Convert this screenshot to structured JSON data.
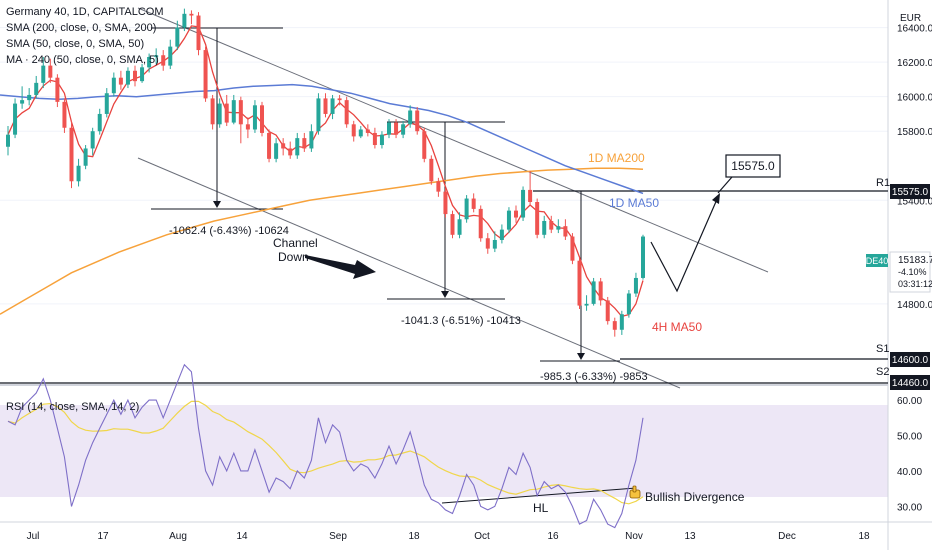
{
  "header": {
    "symbol_line": "Germany 40, 1D, CAPITALCOM",
    "indicators": [
      "SMA (200, close, 0, SMA, 200)",
      "SMA (50, close, 0, SMA, 50)",
      "MA · 240 (50, close, 0, SMA, 5)"
    ]
  },
  "price_axis": {
    "currency": "EUR",
    "ticks": [
      "16400.0",
      "16200.0",
      "16000.0",
      "15800.0",
      "15400.0",
      "14800.0"
    ],
    "price_label_symbol": "DE40",
    "price_label_value": "15183.7",
    "price_label_change": "-4.10%",
    "price_label_timer": "03:31:12",
    "r1_value": "15575.0",
    "s1_value": "14600.0",
    "s2_value": "14460.0"
  },
  "rsi_axis": {
    "ticks": [
      "60.00",
      "50.00",
      "40.00",
      "30.00"
    ]
  },
  "time_axis": {
    "ticks": [
      "Jul",
      "17",
      "Aug",
      "14",
      "Sep",
      "18",
      "Oct",
      "16",
      "Nov",
      "13",
      "Dec",
      "18"
    ]
  },
  "annotations": {
    "target_box": "15575.0",
    "channel_label_1": "Channel",
    "channel_label_2": "Down",
    "ma200_label": "1D MA200",
    "ma50_label": "1D MA50",
    "ma4h_label": "4H MA50",
    "r1": "R1",
    "s1": "S1",
    "s2": "S2",
    "measure1": "-1062.4 (-6.43%) -10624",
    "measure2": "-1041.3 (-6.51%) -10413",
    "measure3": "-985.3 (-6.33%) -9853",
    "hl": "HL",
    "bullish_div": "Bullish Divergence",
    "rsi_title": "RSI (14, close, SMA, 14, 2)"
  },
  "colors": {
    "up": "#26a69a",
    "down": "#ef5350",
    "ma200": "#f7a23b",
    "ma50_daily": "#5b7bd5",
    "ma4h": "#e8433f",
    "rsi": "#7e6fc8",
    "rsi_ma": "#f0d64a",
    "rsi_band": "#ede7f6"
  },
  "chart_data": {
    "type": "candlestick",
    "candles": [
      {
        "o": 15710,
        "c": 15780,
        "h": 15830,
        "l": 15660
      },
      {
        "o": 15780,
        "c": 15960,
        "h": 15990,
        "l": 15760
      },
      {
        "o": 15960,
        "c": 15980,
        "h": 16060,
        "l": 15930
      },
      {
        "o": 15980,
        "c": 16010,
        "h": 16050,
        "l": 15950
      },
      {
        "o": 16010,
        "c": 16080,
        "h": 16120,
        "l": 15990
      },
      {
        "o": 16080,
        "c": 16180,
        "h": 16230,
        "l": 16050
      },
      {
        "o": 16180,
        "c": 16110,
        "h": 16220,
        "l": 16080
      },
      {
        "o": 16110,
        "c": 15970,
        "h": 16130,
        "l": 15940
      },
      {
        "o": 15970,
        "c": 15820,
        "h": 15990,
        "l": 15790
      },
      {
        "o": 15820,
        "c": 15510,
        "h": 15860,
        "l": 15470
      },
      {
        "o": 15510,
        "c": 15600,
        "h": 15640,
        "l": 15480
      },
      {
        "o": 15600,
        "c": 15700,
        "h": 15720,
        "l": 15580
      },
      {
        "o": 15700,
        "c": 15800,
        "h": 15820,
        "l": 15660
      },
      {
        "o": 15800,
        "c": 15900,
        "h": 15930,
        "l": 15780
      },
      {
        "o": 15900,
        "c": 16020,
        "h": 16050,
        "l": 15880
      },
      {
        "o": 16020,
        "c": 16110,
        "h": 16140,
        "l": 16000
      },
      {
        "o": 16110,
        "c": 16070,
        "h": 16150,
        "l": 16040
      },
      {
        "o": 16070,
        "c": 16150,
        "h": 16170,
        "l": 16050
      },
      {
        "o": 16150,
        "c": 16090,
        "h": 16180,
        "l": 16060
      },
      {
        "o": 16090,
        "c": 16170,
        "h": 16190,
        "l": 16080
      },
      {
        "o": 16170,
        "c": 16230,
        "h": 16250,
        "l": 16140
      },
      {
        "o": 16230,
        "c": 16240,
        "h": 16280,
        "l": 16190
      },
      {
        "o": 16240,
        "c": 16180,
        "h": 16270,
        "l": 16150
      },
      {
        "o": 16180,
        "c": 16290,
        "h": 16330,
        "l": 16160
      },
      {
        "o": 16290,
        "c": 16400,
        "h": 16440,
        "l": 16270
      },
      {
        "o": 16400,
        "c": 16480,
        "h": 16510,
        "l": 16380
      },
      {
        "o": 16480,
        "c": 16470,
        "h": 16500,
        "l": 16420
      },
      {
        "o": 16470,
        "c": 16270,
        "h": 16490,
        "l": 16240
      },
      {
        "o": 16270,
        "c": 15990,
        "h": 16290,
        "l": 15970
      },
      {
        "o": 15990,
        "c": 15840,
        "h": 16010,
        "l": 15810
      },
      {
        "o": 15840,
        "c": 15960,
        "h": 15990,
        "l": 15820
      },
      {
        "o": 15960,
        "c": 15850,
        "h": 16010,
        "l": 15830
      },
      {
        "o": 15850,
        "c": 15980,
        "h": 16010,
        "l": 15840
      },
      {
        "o": 15980,
        "c": 15840,
        "h": 16000,
        "l": 15730
      },
      {
        "o": 15840,
        "c": 15810,
        "h": 15880,
        "l": 15760
      },
      {
        "o": 15810,
        "c": 15950,
        "h": 15980,
        "l": 15790
      },
      {
        "o": 15950,
        "c": 15790,
        "h": 15970,
        "l": 15770
      },
      {
        "o": 15790,
        "c": 15640,
        "h": 15810,
        "l": 15620
      },
      {
        "o": 15640,
        "c": 15730,
        "h": 15760,
        "l": 15620
      },
      {
        "o": 15730,
        "c": 15700,
        "h": 15760,
        "l": 15660
      },
      {
        "o": 15700,
        "c": 15660,
        "h": 15740,
        "l": 15640
      },
      {
        "o": 15660,
        "c": 15760,
        "h": 15790,
        "l": 15640
      },
      {
        "o": 15760,
        "c": 15700,
        "h": 15790,
        "l": 15680
      },
      {
        "o": 15700,
        "c": 15800,
        "h": 15840,
        "l": 15680
      },
      {
        "o": 15800,
        "c": 15990,
        "h": 16020,
        "l": 15780
      },
      {
        "o": 15990,
        "c": 15900,
        "h": 16020,
        "l": 15880
      },
      {
        "o": 15900,
        "c": 15990,
        "h": 16010,
        "l": 15870
      },
      {
        "o": 15990,
        "c": 15980,
        "h": 16010,
        "l": 15950
      },
      {
        "o": 15980,
        "c": 15840,
        "h": 16000,
        "l": 15820
      },
      {
        "o": 15840,
        "c": 15770,
        "h": 15860,
        "l": 15740
      },
      {
        "o": 15770,
        "c": 15810,
        "h": 15830,
        "l": 15760
      },
      {
        "o": 15810,
        "c": 15790,
        "h": 15840,
        "l": 15770
      },
      {
        "o": 15790,
        "c": 15720,
        "h": 15820,
        "l": 15700
      },
      {
        "o": 15720,
        "c": 15780,
        "h": 15800,
        "l": 15700
      },
      {
        "o": 15780,
        "c": 15850,
        "h": 15870,
        "l": 15760
      },
      {
        "o": 15850,
        "c": 15780,
        "h": 15870,
        "l": 15760
      },
      {
        "o": 15780,
        "c": 15840,
        "h": 15860,
        "l": 15760
      },
      {
        "o": 15840,
        "c": 15920,
        "h": 15950,
        "l": 15820
      },
      {
        "o": 15920,
        "c": 15800,
        "h": 15940,
        "l": 15780
      },
      {
        "o": 15800,
        "c": 15640,
        "h": 15820,
        "l": 15620
      },
      {
        "o": 15640,
        "c": 15510,
        "h": 15660,
        "l": 15490
      },
      {
        "o": 15510,
        "c": 15450,
        "h": 15530,
        "l": 15420
      },
      {
        "o": 15450,
        "c": 15320,
        "h": 15470,
        "l": 15300
      },
      {
        "o": 15320,
        "c": 15200,
        "h": 15340,
        "l": 15180
      },
      {
        "o": 15200,
        "c": 15290,
        "h": 15330,
        "l": 15180
      },
      {
        "o": 15290,
        "c": 15410,
        "h": 15430,
        "l": 15270
      },
      {
        "o": 15410,
        "c": 15350,
        "h": 15440,
        "l": 15330
      },
      {
        "o": 15350,
        "c": 15180,
        "h": 15370,
        "l": 15160
      },
      {
        "o": 15180,
        "c": 15120,
        "h": 15210,
        "l": 15090
      },
      {
        "o": 15120,
        "c": 15170,
        "h": 15220,
        "l": 15100
      },
      {
        "o": 15170,
        "c": 15230,
        "h": 15260,
        "l": 15150
      },
      {
        "o": 15230,
        "c": 15340,
        "h": 15360,
        "l": 15210
      },
      {
        "o": 15340,
        "c": 15300,
        "h": 15370,
        "l": 15270
      },
      {
        "o": 15300,
        "c": 15460,
        "h": 15480,
        "l": 15280
      },
      {
        "o": 15460,
        "c": 15390,
        "h": 15570,
        "l": 15370
      },
      {
        "o": 15390,
        "c": 15200,
        "h": 15410,
        "l": 15180
      },
      {
        "o": 15200,
        "c": 15280,
        "h": 15310,
        "l": 15180
      },
      {
        "o": 15280,
        "c": 15230,
        "h": 15310,
        "l": 15210
      },
      {
        "o": 15230,
        "c": 15250,
        "h": 15290,
        "l": 15210
      },
      {
        "o": 15250,
        "c": 15190,
        "h": 15290,
        "l": 15170
      },
      {
        "o": 15190,
        "c": 15050,
        "h": 15210,
        "l": 15030
      },
      {
        "o": 15050,
        "c": 14790,
        "h": 15070,
        "l": 14770
      },
      {
        "o": 14790,
        "c": 14800,
        "h": 14850,
        "l": 14760
      },
      {
        "o": 14800,
        "c": 14930,
        "h": 14950,
        "l": 14790
      },
      {
        "o": 14930,
        "c": 14820,
        "h": 14950,
        "l": 14790
      },
      {
        "o": 14820,
        "c": 14700,
        "h": 14840,
        "l": 14680
      },
      {
        "o": 14700,
        "c": 14650,
        "h": 14720,
        "l": 14610
      },
      {
        "o": 14650,
        "c": 14740,
        "h": 14760,
        "l": 14620
      },
      {
        "o": 14740,
        "c": 14860,
        "h": 14880,
        "l": 14720
      },
      {
        "o": 14860,
        "c": 14950,
        "h": 14980,
        "l": 14840
      },
      {
        "o": 14950,
        "c": 15190,
        "h": 15200,
        "l": 14940
      }
    ],
    "rsi": [
      54,
      53,
      58,
      60,
      62,
      66,
      60,
      52,
      44,
      30,
      36,
      43,
      48,
      52,
      56,
      60,
      56,
      60,
      55,
      58,
      60,
      60,
      55,
      60,
      65,
      70,
      68,
      52,
      40,
      36,
      44,
      40,
      45,
      40,
      40,
      46,
      40,
      34,
      38,
      37,
      35,
      40,
      38,
      43,
      55,
      48,
      53,
      51,
      43,
      40,
      42,
      41,
      38,
      42,
      47,
      42,
      46,
      51,
      44,
      36,
      32,
      31,
      29,
      28,
      33,
      39,
      36,
      30,
      29,
      30,
      35,
      41,
      39,
      45,
      41,
      33,
      37,
      35,
      36,
      34,
      30,
      25,
      26,
      32,
      29,
      25,
      24,
      28,
      36,
      43,
      55
    ],
    "ylim": [
      14330,
      16560
    ],
    "rsi_ylim": [
      27,
      62
    ]
  }
}
